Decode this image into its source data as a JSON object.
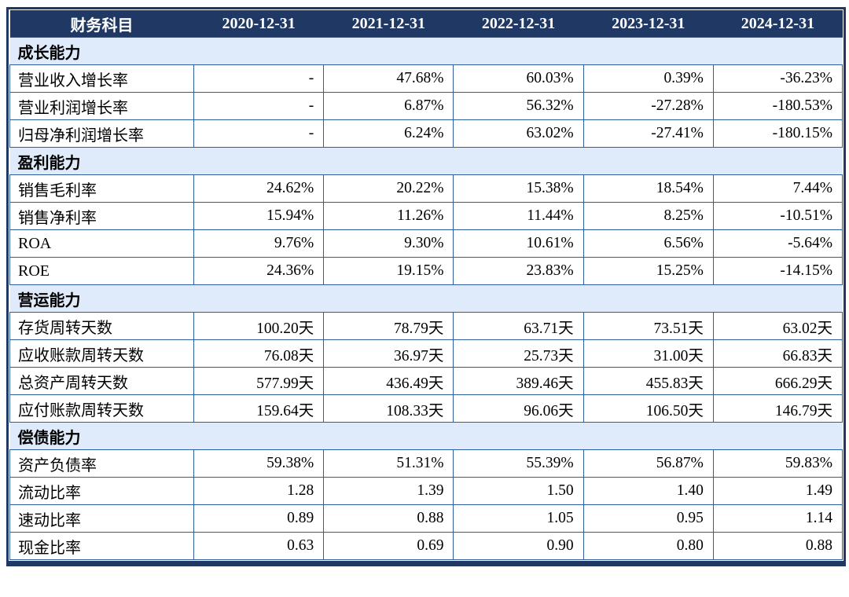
{
  "table": {
    "header": {
      "label_col": "财务科目",
      "dates": [
        "2020-12-31",
        "2021-12-31",
        "2022-12-31",
        "2023-12-31",
        "2024-12-31"
      ]
    },
    "sections": [
      {
        "title": "成长能力",
        "rows": [
          {
            "label": "营业收入增长率",
            "values": [
              "-",
              "47.68%",
              "60.03%",
              "0.39%",
              "-36.23%"
            ]
          },
          {
            "label": "营业利润增长率",
            "values": [
              "-",
              "6.87%",
              "56.32%",
              "-27.28%",
              "-180.53%"
            ]
          },
          {
            "label": "归母净利润增长率",
            "values": [
              "-",
              "6.24%",
              "63.02%",
              "-27.41%",
              "-180.15%"
            ]
          }
        ]
      },
      {
        "title": "盈利能力",
        "rows": [
          {
            "label": "销售毛利率",
            "values": [
              "24.62%",
              "20.22%",
              "15.38%",
              "18.54%",
              "7.44%"
            ]
          },
          {
            "label": "销售净利率",
            "values": [
              "15.94%",
              "11.26%",
              "11.44%",
              "8.25%",
              "-10.51%"
            ]
          },
          {
            "label": "ROA",
            "values": [
              "9.76%",
              "9.30%",
              "10.61%",
              "6.56%",
              "-5.64%"
            ]
          },
          {
            "label": "ROE",
            "values": [
              "24.36%",
              "19.15%",
              "23.83%",
              "15.25%",
              "-14.15%"
            ]
          }
        ]
      },
      {
        "title": "营运能力",
        "rows": [
          {
            "label": "存货周转天数",
            "values": [
              "100.20天",
              "78.79天",
              "63.71天",
              "73.51天",
              "63.02天"
            ]
          },
          {
            "label": "应收账款周转天数",
            "values": [
              "76.08天",
              "36.97天",
              "25.73天",
              "31.00天",
              "66.83天"
            ]
          },
          {
            "label": "总资产周转天数",
            "values": [
              "577.99天",
              "436.49天",
              "389.46天",
              "455.83天",
              "666.29天"
            ]
          },
          {
            "label": "应付账款周转天数",
            "values": [
              "159.64天",
              "108.33天",
              "96.06天",
              "106.50天",
              "146.79天"
            ]
          }
        ]
      },
      {
        "title": "偿债能力",
        "rows": [
          {
            "label": "资产负债率",
            "values": [
              "59.38%",
              "51.31%",
              "55.39%",
              "56.87%",
              "59.83%"
            ]
          },
          {
            "label": "流动比率",
            "values": [
              "1.28",
              "1.39",
              "1.50",
              "1.40",
              "1.49"
            ]
          },
          {
            "label": "速动比率",
            "values": [
              "0.89",
              "0.88",
              "1.05",
              "0.95",
              "1.14"
            ]
          },
          {
            "label": "现金比率",
            "values": [
              "0.63",
              "0.69",
              "0.90",
              "0.80",
              "0.88"
            ]
          }
        ]
      }
    ],
    "colors": {
      "header_bg": "#1F3864",
      "header_text": "#FFFFFF",
      "section_bg": "#DFEBFA",
      "inner_border": "#2E5C9E",
      "outer_border": "#1F3864",
      "cell_text": "#000000"
    }
  }
}
